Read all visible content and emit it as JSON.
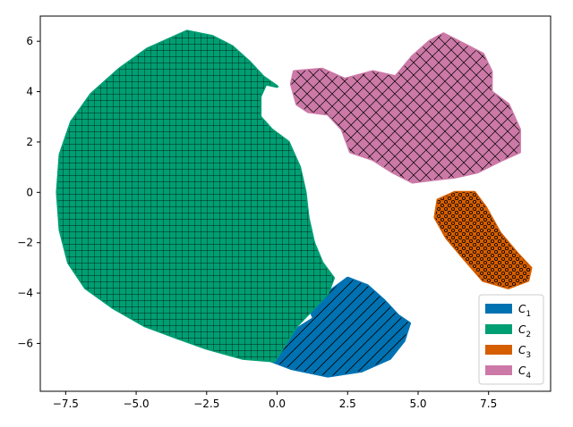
{
  "chart_data": {
    "type": "scatter",
    "title": "",
    "xlabel": "",
    "ylabel": "",
    "xlim": [
      -8.4,
      9.7
    ],
    "ylim": [
      -7.9,
      7.0
    ],
    "grid": false,
    "legend_position": "lower-right",
    "x_ticks": [
      -7.5,
      -5.0,
      -2.5,
      0.0,
      2.5,
      5.0,
      7.5
    ],
    "y_ticks": [
      -6,
      -4,
      -2,
      0,
      2,
      4,
      6
    ],
    "x_tick_labels": [
      "−7.5",
      "−5.0",
      "−2.5",
      "0.0",
      "2.5",
      "5.0",
      "7.5"
    ],
    "y_tick_labels": [
      "−6",
      "−4",
      "−2",
      "0",
      "2",
      "4",
      "6"
    ],
    "series": [
      {
        "name": "C1",
        "label_main": "C",
        "label_sub": "1",
        "color": "#0072b2",
        "hatch": "diagonal",
        "region": [
          [
            1.9,
            -3.9
          ],
          [
            2.5,
            -3.4
          ],
          [
            3.2,
            -3.7
          ],
          [
            3.8,
            -4.3
          ],
          [
            4.3,
            -4.9
          ],
          [
            4.7,
            -5.2
          ],
          [
            4.5,
            -5.9
          ],
          [
            4.0,
            -6.6
          ],
          [
            3.0,
            -7.1
          ],
          [
            1.8,
            -7.3
          ],
          [
            0.5,
            -7.0
          ],
          [
            -0.2,
            -6.7
          ],
          [
            -0.3,
            -6.4
          ],
          [
            0.3,
            -5.8
          ],
          [
            0.6,
            -5.5
          ],
          [
            1.3,
            -5.0
          ],
          [
            1.1,
            -4.5
          ]
        ]
      },
      {
        "name": "C2",
        "label_main": "C",
        "label_sub": "2",
        "color": "#009e73",
        "hatch": "grid",
        "region": [
          [
            -3.2,
            6.4
          ],
          [
            -2.3,
            6.2
          ],
          [
            -1.6,
            5.8
          ],
          [
            -1.0,
            5.2
          ],
          [
            -0.5,
            4.6
          ],
          [
            0.0,
            4.2
          ],
          [
            -0.4,
            4.3
          ],
          [
            -0.6,
            3.8
          ],
          [
            -0.6,
            3.0
          ],
          [
            -0.2,
            2.5
          ],
          [
            0.4,
            2.0
          ],
          [
            0.8,
            1.0
          ],
          [
            1.0,
            0.0
          ],
          [
            1.1,
            -1.0
          ],
          [
            1.3,
            -2.0
          ],
          [
            1.6,
            -2.8
          ],
          [
            2.0,
            -3.4
          ],
          [
            1.8,
            -4.0
          ],
          [
            1.3,
            -4.6
          ],
          [
            0.7,
            -5.3
          ],
          [
            0.3,
            -6.0
          ],
          [
            -0.1,
            -6.7
          ],
          [
            -1.2,
            -6.6
          ],
          [
            -2.5,
            -6.2
          ],
          [
            -3.5,
            -5.8
          ],
          [
            -4.7,
            -5.3
          ],
          [
            -5.8,
            -4.6
          ],
          [
            -6.8,
            -3.8
          ],
          [
            -7.4,
            -2.8
          ],
          [
            -7.7,
            -1.5
          ],
          [
            -7.8,
            0.0
          ],
          [
            -7.7,
            1.5
          ],
          [
            -7.3,
            2.8
          ],
          [
            -6.6,
            3.9
          ],
          [
            -5.6,
            4.9
          ],
          [
            -4.6,
            5.7
          ]
        ]
      },
      {
        "name": "C3",
        "label_main": "C",
        "label_sub": "3",
        "color": "#d55e00",
        "hatch": "dots",
        "region": [
          [
            6.3,
            0.0
          ],
          [
            7.0,
            0.0
          ],
          [
            7.4,
            -0.6
          ],
          [
            7.9,
            -1.6
          ],
          [
            8.5,
            -2.4
          ],
          [
            9.0,
            -3.0
          ],
          [
            8.9,
            -3.5
          ],
          [
            8.2,
            -3.8
          ],
          [
            7.3,
            -3.5
          ],
          [
            6.6,
            -2.6
          ],
          [
            6.0,
            -1.8
          ],
          [
            5.6,
            -1.0
          ],
          [
            5.7,
            -0.3
          ]
        ]
      },
      {
        "name": "C4",
        "label_main": "C",
        "label_sub": "4",
        "color": "#cc79a7",
        "hatch": "crosshatch",
        "region": [
          [
            0.6,
            4.8
          ],
          [
            1.6,
            4.9
          ],
          [
            2.4,
            4.5
          ],
          [
            3.4,
            4.8
          ],
          [
            4.2,
            4.6
          ],
          [
            4.8,
            5.4
          ],
          [
            5.4,
            6.0
          ],
          [
            5.9,
            6.3
          ],
          [
            6.6,
            5.9
          ],
          [
            7.3,
            5.5
          ],
          [
            7.6,
            4.8
          ],
          [
            7.6,
            4.0
          ],
          [
            8.2,
            3.5
          ],
          [
            8.6,
            2.5
          ],
          [
            8.6,
            1.6
          ],
          [
            8.0,
            1.3
          ],
          [
            7.1,
            0.8
          ],
          [
            6.3,
            0.6
          ],
          [
            5.5,
            0.5
          ],
          [
            4.8,
            0.4
          ],
          [
            4.1,
            0.8
          ],
          [
            3.4,
            1.3
          ],
          [
            2.6,
            1.6
          ],
          [
            2.3,
            2.5
          ],
          [
            1.8,
            3.1
          ],
          [
            1.1,
            3.2
          ],
          [
            0.7,
            3.5
          ],
          [
            0.5,
            4.3
          ]
        ]
      }
    ]
  }
}
